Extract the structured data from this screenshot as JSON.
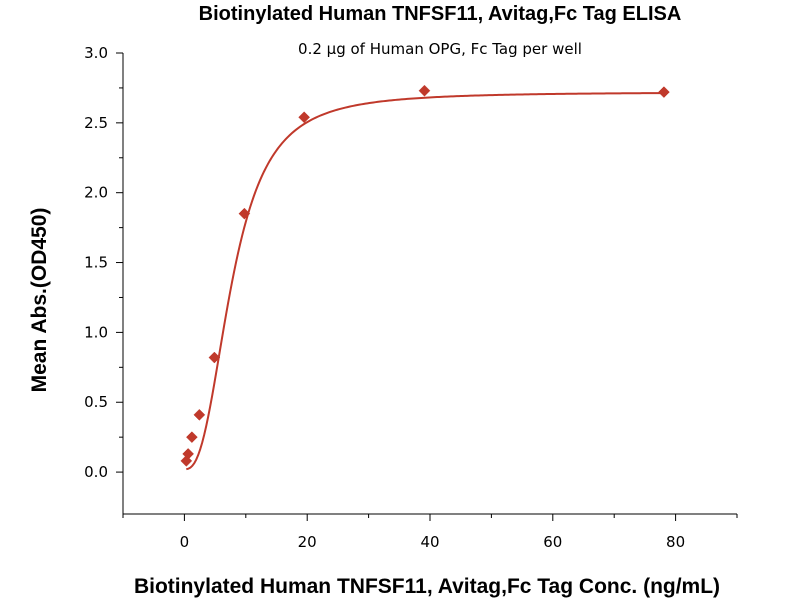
{
  "chart_data": {
    "type": "scatter",
    "title": "Biotinylated Human TNFSF11, Avitag,Fc Tag ELISA",
    "subtitle": "0.2 µg of Human OPG, Fc Tag per well",
    "xlabel": "Biotinylated Human TNFSF11, Avitag,Fc Tag Conc. (ng/mL)",
    "ylabel": "Mean Abs.(OD450)",
    "xlim": [
      -10,
      90
    ],
    "ylim": [
      -0.3,
      3.0
    ],
    "xticks": [
      0,
      20,
      40,
      60,
      80
    ],
    "xtick_labels": [
      "0",
      "20",
      "40",
      "60",
      "80"
    ],
    "yticks": [
      0.0,
      0.5,
      1.0,
      1.5,
      2.0,
      2.5,
      3.0
    ],
    "ytick_labels": [
      "0.0",
      "0.5",
      "1.0",
      "1.5",
      "2.0",
      "2.5",
      "3.0"
    ],
    "grid": false,
    "legend": "none",
    "marker": "diamond",
    "color": "#c0392b",
    "series": [
      {
        "x": [
          0.31,
          0.61,
          1.22,
          2.44,
          4.88,
          9.77,
          19.5,
          39.1,
          78.1
        ],
        "y": [
          0.08,
          0.13,
          0.25,
          0.41,
          0.82,
          1.85,
          2.54,
          2.73,
          2.72
        ]
      }
    ],
    "fit_curve": {
      "type": "4PL",
      "bottom": 0.02,
      "top": 2.72,
      "ec50": 7.8,
      "hill": 2.6
    }
  }
}
